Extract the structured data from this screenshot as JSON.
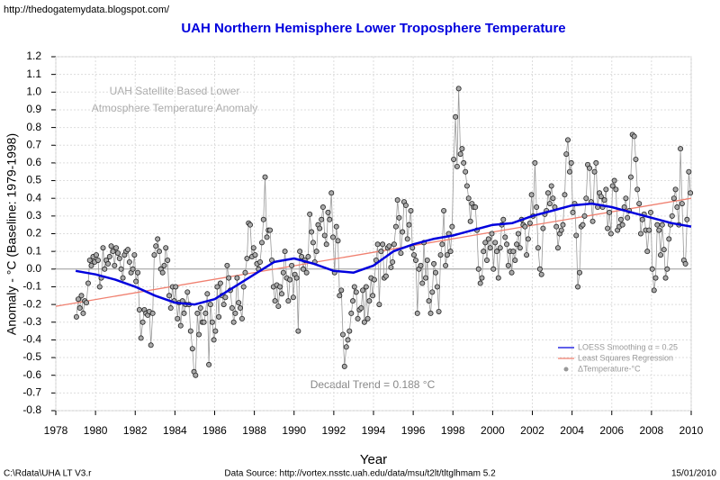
{
  "source_url": "http://thedogatemydata.blogspot.com/",
  "footer": {
    "left": "C:\\Rdata\\UHA  LT  V3.r",
    "center": "Data Source: http://vortex.nsstc.uah.edu/data/msu/t2lt/tltglhmam  5.2",
    "right": "15/01/2010"
  },
  "chart_data": {
    "type": "line",
    "title": "UAH Northern Hemisphere Lower Troposphere Temperature",
    "annotations": [
      "UAH Satellite Based Lower",
      "Atmosphere Temperature Anomaly",
      "Decadal Trend =  0.188 °C"
    ],
    "xlabel": "Year",
    "ylabel": "Anomaly - °C (Baseline: 1979-1998)",
    "xlim": [
      1978,
      2010
    ],
    "ylim": [
      -0.8,
      1.2
    ],
    "xticks": [
      1978,
      1980,
      1982,
      1984,
      1986,
      1988,
      1990,
      1992,
      1994,
      1996,
      1998,
      2000,
      2002,
      2004,
      2006,
      2008,
      2010
    ],
    "yticks": [
      -0.8,
      -0.7,
      -0.6,
      -0.5,
      -0.4,
      -0.3,
      -0.2,
      -0.1,
      {
        "value": 0,
        "label": "0.0"
      },
      0.1,
      0.2,
      0.3,
      0.4,
      0.5,
      0.6,
      0.7,
      0.8,
      0.9,
      {
        "value": 1,
        "label": "1.0"
      },
      1.1,
      1.2
    ],
    "grid": true,
    "legend": "lower right",
    "series": [
      {
        "name": "LOESS Smoothing α = 0.25",
        "color": "#0000dd",
        "x": [
          1979,
          1980,
          1981,
          1982,
          1983,
          1984,
          1985,
          1986,
          1987,
          1988,
          1989,
          1990,
          1991,
          1992,
          1993,
          1994,
          1995,
          1996,
          1997,
          1998,
          1999,
          2000,
          2001,
          2002,
          2003,
          2004,
          2005,
          2006,
          2007,
          2008,
          2009,
          2010
        ],
        "values": [
          -0.01,
          -0.03,
          -0.06,
          -0.1,
          -0.15,
          -0.19,
          -0.2,
          -0.17,
          -0.1,
          -0.03,
          0.04,
          0.06,
          0.03,
          -0.01,
          -0.02,
          0.02,
          0.1,
          0.14,
          0.17,
          0.19,
          0.22,
          0.25,
          0.26,
          0.3,
          0.33,
          0.36,
          0.37,
          0.35,
          0.32,
          0.29,
          0.26,
          0.24
        ]
      },
      {
        "name": "Least Squares Regression",
        "color": "#f08070",
        "x": [
          1978,
          2010
        ],
        "values": [
          -0.21,
          0.4
        ]
      },
      {
        "name": "ΔTemperature-°C",
        "color": "#999999",
        "x": [
          1979.04,
          1979.13,
          1979.21,
          1979.29,
          1979.38,
          1979.46,
          1979.54,
          1979.63,
          1979.71,
          1979.79,
          1979.88,
          1979.96,
          1980.04,
          1980.13,
          1980.21,
          1980.29,
          1980.38,
          1980.46,
          1980.54,
          1980.63,
          1980.71,
          1980.79,
          1980.88,
          1980.96,
          1981.04,
          1981.13,
          1981.21,
          1981.29,
          1981.38,
          1981.46,
          1981.54,
          1981.63,
          1981.71,
          1981.79,
          1981.88,
          1981.96,
          1982.04,
          1982.13,
          1982.21,
          1982.29,
          1982.38,
          1982.46,
          1982.54,
          1982.63,
          1982.71,
          1982.79,
          1982.88,
          1982.96,
          1983.04,
          1983.13,
          1983.21,
          1983.29,
          1983.38,
          1983.46,
          1983.54,
          1983.63,
          1983.71,
          1983.79,
          1983.88,
          1983.96,
          1984.04,
          1984.13,
          1984.21,
          1984.29,
          1984.38,
          1984.46,
          1984.54,
          1984.63,
          1984.71,
          1984.79,
          1984.88,
          1984.96,
          1985.04,
          1985.13,
          1985.21,
          1985.29,
          1985.38,
          1985.46,
          1985.54,
          1985.63,
          1985.71,
          1985.79,
          1985.88,
          1985.96,
          1986.04,
          1986.13,
          1986.21,
          1986.29,
          1986.38,
          1986.46,
          1986.54,
          1986.63,
          1986.71,
          1986.79,
          1986.88,
          1986.96,
          1987.04,
          1987.13,
          1987.21,
          1987.29,
          1987.38,
          1987.46,
          1987.54,
          1987.63,
          1987.71,
          1987.79,
          1987.88,
          1987.96,
          1988.04,
          1988.13,
          1988.21,
          1988.29,
          1988.38,
          1988.46,
          1988.54,
          1988.63,
          1988.71,
          1988.79,
          1988.88,
          1988.96,
          1989.04,
          1989.13,
          1989.21,
          1989.29,
          1989.38,
          1989.46,
          1989.54,
          1989.63,
          1989.71,
          1989.79,
          1989.88,
          1989.96,
          1990.04,
          1990.13,
          1990.21,
          1990.29,
          1990.38,
          1990.46,
          1990.54,
          1990.63,
          1990.71,
          1990.79,
          1990.88,
          1990.96,
          1991.04,
          1991.13,
          1991.21,
          1991.29,
          1991.38,
          1991.46,
          1991.54,
          1991.63,
          1991.71,
          1991.79,
          1991.88,
          1991.96,
          1992.04,
          1992.13,
          1992.21,
          1992.29,
          1992.38,
          1992.46,
          1992.54,
          1992.63,
          1992.71,
          1992.79,
          1992.88,
          1992.96,
          1993.04,
          1993.13,
          1993.21,
          1993.29,
          1993.38,
          1993.46,
          1993.54,
          1993.63,
          1993.71,
          1993.79,
          1993.88,
          1993.96,
          1994.04,
          1994.13,
          1994.21,
          1994.29,
          1994.38,
          1994.46,
          1994.54,
          1994.63,
          1994.71,
          1994.79,
          1994.88,
          1994.96,
          1995.04,
          1995.13,
          1995.21,
          1995.29,
          1995.38,
          1995.46,
          1995.54,
          1995.63,
          1995.71,
          1995.79,
          1995.88,
          1995.96,
          1996.04,
          1996.13,
          1996.21,
          1996.29,
          1996.38,
          1996.46,
          1996.54,
          1996.63,
          1996.71,
          1996.79,
          1996.88,
          1996.96,
          1997.04,
          1997.13,
          1997.21,
          1997.29,
          1997.38,
          1997.46,
          1997.54,
          1997.63,
          1997.71,
          1997.79,
          1997.88,
          1997.96,
          1998.04,
          1998.13,
          1998.21,
          1998.29,
          1998.38,
          1998.46,
          1998.54,
          1998.63,
          1998.71,
          1998.79,
          1998.88,
          1998.96,
          1999.04,
          1999.13,
          1999.21,
          1999.29,
          1999.38,
          1999.46,
          1999.54,
          1999.63,
          1999.71,
          1999.79,
          1999.88,
          1999.96,
          2000.04,
          2000.13,
          2000.21,
          2000.29,
          2000.38,
          2000.46,
          2000.54,
          2000.63,
          2000.71,
          2000.79,
          2000.88,
          2000.96,
          2001.04,
          2001.13,
          2001.21,
          2001.29,
          2001.38,
          2001.46,
          2001.54,
          2001.63,
          2001.71,
          2001.79,
          2001.88,
          2001.96,
          2002.04,
          2002.13,
          2002.21,
          2002.29,
          2002.38,
          2002.46,
          2002.54,
          2002.63,
          2002.71,
          2002.79,
          2002.88,
          2002.96,
          2003.04,
          2003.13,
          2003.21,
          2003.29,
          2003.38,
          2003.46,
          2003.54,
          2003.63,
          2003.71,
          2003.79,
          2003.88,
          2003.96,
          2004.04,
          2004.13,
          2004.21,
          2004.29,
          2004.38,
          2004.46,
          2004.54,
          2004.63,
          2004.71,
          2004.79,
          2004.88,
          2004.96,
          2005.04,
          2005.13,
          2005.21,
          2005.29,
          2005.38,
          2005.46,
          2005.54,
          2005.63,
          2005.71,
          2005.79,
          2005.88,
          2005.96,
          2006.04,
          2006.13,
          2006.21,
          2006.29,
          2006.38,
          2006.46,
          2006.54,
          2006.63,
          2006.71,
          2006.79,
          2006.88,
          2006.96,
          2007.04,
          2007.13,
          2007.21,
          2007.29,
          2007.38,
          2007.46,
          2007.54,
          2007.63,
          2007.71,
          2007.79,
          2007.88,
          2007.96,
          2008.04,
          2008.13,
          2008.21,
          2008.29,
          2008.38,
          2008.46,
          2008.54,
          2008.63,
          2008.71,
          2008.79,
          2008.88,
          2008.96,
          2009.04,
          2009.13,
          2009.21,
          2009.29,
          2009.38,
          2009.46,
          2009.54,
          2009.63,
          2009.71,
          2009.79,
          2009.88,
          2009.96
        ],
        "values": [
          -0.27,
          -0.17,
          -0.22,
          -0.15,
          -0.25,
          -0.18,
          -0.19,
          -0.08,
          0.05,
          0.02,
          0.07,
          0.04,
          0.08,
          0.05,
          -0.1,
          -0.05,
          0.12,
          0.0,
          0.05,
          0.03,
          0.07,
          0.13,
          0.1,
          0.02,
          0.12,
          0.09,
          0.06,
          0.0,
          -0.05,
          0.08,
          0.1,
          0.11,
          0.04,
          -0.02,
          0.0,
          0.08,
          -0.07,
          -0.02,
          -0.23,
          -0.39,
          -0.3,
          -0.23,
          -0.25,
          -0.26,
          -0.24,
          -0.43,
          -0.25,
          0.08,
          0.13,
          0.17,
          0.1,
          0.0,
          -0.02,
          0.02,
          0.12,
          0.05,
          -0.15,
          -0.22,
          -0.1,
          -0.18,
          -0.1,
          -0.28,
          -0.19,
          -0.32,
          -0.18,
          -0.25,
          -0.2,
          -0.13,
          -0.2,
          -0.35,
          -0.45,
          -0.58,
          -0.6,
          -0.25,
          -0.37,
          -0.22,
          -0.3,
          -0.3,
          -0.25,
          -0.14,
          -0.54,
          -0.2,
          -0.3,
          -0.4,
          -0.35,
          -0.1,
          -0.27,
          -0.08,
          -0.15,
          -0.2,
          -0.16,
          0.02,
          -0.05,
          -0.12,
          -0.22,
          -0.3,
          -0.25,
          -0.05,
          -0.19,
          -0.22,
          -0.28,
          -0.1,
          -0.02,
          0.06,
          0.26,
          0.25,
          0.07,
          0.12,
          0.08,
          0.03,
          0.0,
          0.04,
          0.15,
          0.28,
          0.52,
          0.18,
          0.22,
          0.22,
          0.05,
          -0.1,
          -0.18,
          -0.09,
          -0.21,
          -0.1,
          -0.14,
          -0.02,
          0.1,
          -0.05,
          -0.18,
          -0.06,
          0.02,
          -0.16,
          -0.03,
          -0.05,
          -0.35,
          0.1,
          0.07,
          0.0,
          0.05,
          -0.02,
          0.07,
          0.31,
          0.21,
          0.15,
          0.04,
          0.1,
          0.25,
          0.23,
          0.28,
          0.35,
          0.19,
          0.14,
          0.32,
          0.28,
          0.43,
          0.18,
          -0.02,
          0.24,
          0.16,
          -0.15,
          -0.12,
          -0.37,
          -0.55,
          -0.44,
          -0.4,
          -0.35,
          -0.25,
          -0.18,
          -0.1,
          -0.13,
          -0.28,
          -0.23,
          -0.22,
          -0.12,
          -0.3,
          -0.1,
          -0.28,
          -0.18,
          -0.05,
          -0.15,
          -0.06,
          0.05,
          0.14,
          -0.2,
          0.1,
          0.14,
          -0.05,
          -0.04,
          0.12,
          0.13,
          0.01,
          0.04,
          0.14,
          0.24,
          0.39,
          0.29,
          0.09,
          0.21,
          0.38,
          0.36,
          0.17,
          0.25,
          0.33,
          0.12,
          0.08,
          0.05,
          -0.25,
          0.0,
          0.02,
          -0.08,
          0.15,
          -0.05,
          0.05,
          -0.18,
          -0.25,
          -0.13,
          0.03,
          -0.02,
          -0.1,
          -0.24,
          0.08,
          0.14,
          0.33,
          0.02,
          0.08,
          0.2,
          0.1,
          0.24,
          0.62,
          0.86,
          0.58,
          1.02,
          0.65,
          0.68,
          0.6,
          0.55,
          0.47,
          0.4,
          0.27,
          0.37,
          0.35,
          0.35,
          0.22,
          0.0,
          -0.08,
          -0.05,
          0.1,
          0.15,
          0.05,
          0.17,
          0.12,
          0.2,
          0.0,
          0.15,
          0.1,
          -0.05,
          0.12,
          0.25,
          0.28,
          0.18,
          0.14,
          0.02,
          0.1,
          -0.02,
          0.1,
          0.05,
          0.14,
          0.2,
          0.12,
          0.28,
          0.25,
          0.24,
          0.08,
          0.17,
          0.26,
          0.42,
          0.3,
          0.6,
          0.35,
          0.12,
          0.0,
          -0.03,
          0.23,
          0.31,
          0.33,
          0.43,
          0.37,
          0.47,
          0.4,
          0.35,
          0.24,
          0.12,
          0.2,
          0.22,
          0.25,
          0.42,
          0.65,
          0.73,
          0.55,
          0.6,
          0.32,
          0.37,
          0.19,
          -0.1,
          -0.02,
          0.24,
          0.25,
          0.3,
          0.4,
          0.59,
          0.57,
          0.38,
          0.27,
          0.55,
          0.6,
          0.35,
          0.43,
          0.41,
          0.35,
          0.39,
          0.45,
          0.23,
          0.32,
          0.2,
          0.47,
          0.5,
          0.45,
          0.22,
          0.24,
          0.28,
          0.25,
          0.35,
          0.4,
          0.29,
          0.33,
          0.52,
          0.76,
          0.75,
          0.62,
          0.45,
          0.37,
          0.2,
          0.28,
          0.31,
          0.22,
          0.1,
          0.22,
          0.32,
          0.0,
          -0.12,
          -0.05,
          0.25,
          0.22,
          0.08,
          0.25,
          0.11,
          -0.05,
          0.0,
          0.17,
          0.25,
          0.3,
          0.4,
          0.45,
          0.35,
          0.25,
          0.68,
          0.37,
          0.05,
          0.03,
          0.28,
          0.55,
          0.43
        ]
      }
    ]
  }
}
